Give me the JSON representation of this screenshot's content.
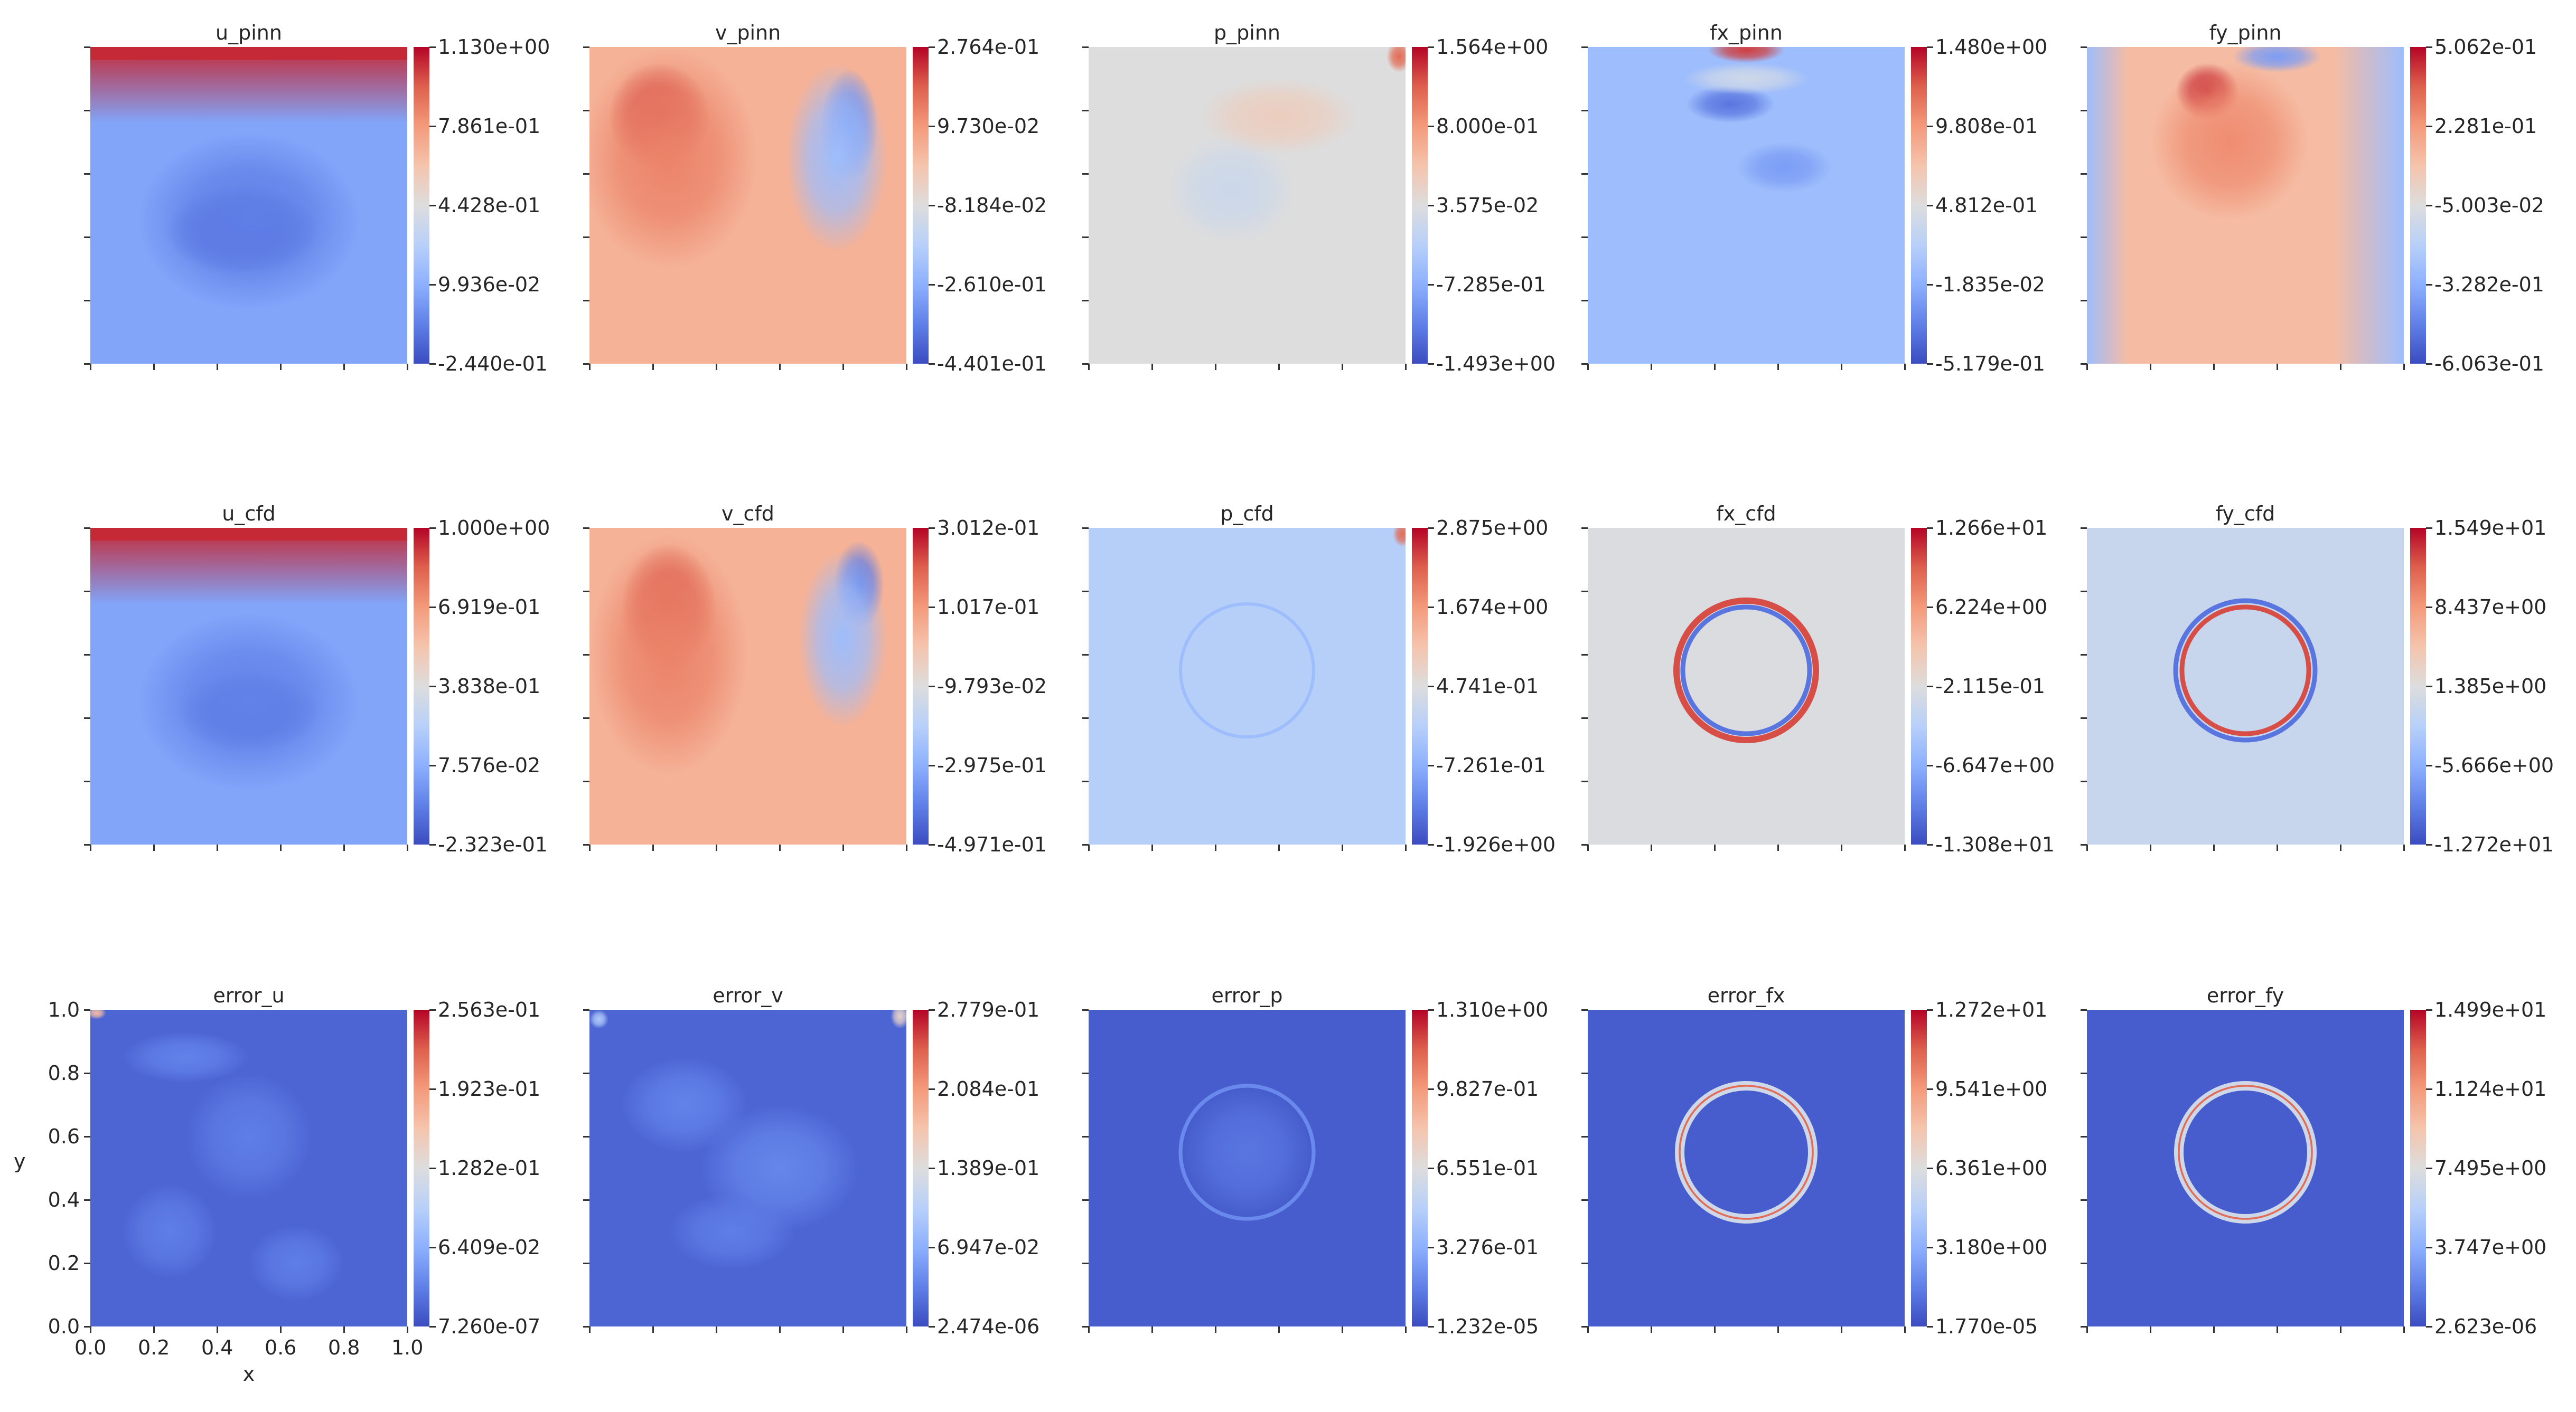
{
  "figure": {
    "background": "#ffffff"
  },
  "chart_data": [
    {
      "type": "heatmap",
      "title": "u_pinn",
      "cmap": "coolwarm",
      "colorbar_ticks": [
        "1.130e+00",
        "7.861e-01",
        "4.428e-01",
        "9.936e-02",
        "-2.440e-01"
      ],
      "background_level": 0.22,
      "features": [
        {
          "kind": "top-band",
          "level": 0.95,
          "width": 0.24,
          "thickness": 0.04
        },
        {
          "kind": "blob",
          "level": 0.06,
          "cx": 0.48,
          "cy": 0.42,
          "rx": 0.24,
          "ry": 0.14
        },
        {
          "kind": "blob",
          "level": 0.12,
          "cx": 0.5,
          "cy": 0.45,
          "rx": 0.35,
          "ry": 0.28
        }
      ]
    },
    {
      "type": "heatmap",
      "title": "v_pinn",
      "cmap": "coolwarm",
      "colorbar_ticks": [
        "2.764e-01",
        "9.730e-02",
        "-8.184e-02",
        "-2.610e-01",
        "-4.401e-01"
      ],
      "background_level": 0.68,
      "features": [
        {
          "kind": "blob",
          "level": 0.92,
          "cx": 0.22,
          "cy": 0.78,
          "rx": 0.16,
          "ry": 0.17
        },
        {
          "kind": "blob",
          "level": 0.8,
          "cx": 0.25,
          "cy": 0.65,
          "rx": 0.28,
          "ry": 0.35
        },
        {
          "kind": "blob",
          "level": 0.12,
          "cx": 0.82,
          "cy": 0.75,
          "rx": 0.09,
          "ry": 0.18
        },
        {
          "kind": "blob",
          "level": 0.3,
          "cx": 0.78,
          "cy": 0.65,
          "rx": 0.16,
          "ry": 0.3
        }
      ]
    },
    {
      "type": "heatmap",
      "title": "p_pinn",
      "cmap": "coolwarm",
      "colorbar_ticks": [
        "1.564e+00",
        "8.000e-01",
        "3.575e-02",
        "-7.285e-01",
        "-1.493e+00"
      ],
      "background_level": 0.5,
      "features": [
        {
          "kind": "blob",
          "level": 0.44,
          "cx": 0.45,
          "cy": 0.55,
          "rx": 0.2,
          "ry": 0.17
        },
        {
          "kind": "blob",
          "level": 0.58,
          "cx": 0.6,
          "cy": 0.78,
          "rx": 0.25,
          "ry": 0.12
        },
        {
          "kind": "blob",
          "level": 0.85,
          "cx": 0.98,
          "cy": 0.97,
          "rx": 0.04,
          "ry": 0.05
        }
      ]
    },
    {
      "type": "heatmap",
      "title": "fx_pinn",
      "cmap": "coolwarm",
      "colorbar_ticks": [
        "1.480e+00",
        "9.808e-01",
        "4.812e-01",
        "-1.835e-02",
        "-5.179e-01"
      ],
      "background_level": 0.3,
      "features": [
        {
          "kind": "blob",
          "level": 0.92,
          "cx": 0.5,
          "cy": 0.99,
          "rx": 0.12,
          "ry": 0.04
        },
        {
          "kind": "blob",
          "level": 0.1,
          "cx": 0.45,
          "cy": 0.82,
          "rx": 0.14,
          "ry": 0.06
        },
        {
          "kind": "blob",
          "level": 0.45,
          "cx": 0.5,
          "cy": 0.9,
          "rx": 0.2,
          "ry": 0.05
        },
        {
          "kind": "blob",
          "level": 0.2,
          "cx": 0.62,
          "cy": 0.62,
          "rx": 0.15,
          "ry": 0.08
        }
      ]
    },
    {
      "type": "heatmap",
      "title": "fy_pinn",
      "cmap": "coolwarm",
      "colorbar_ticks": [
        "5.062e-01",
        "2.281e-01",
        "-5.003e-02",
        "-3.282e-01",
        "-6.063e-01"
      ],
      "background_level": 0.65,
      "features": [
        {
          "kind": "left-edge",
          "level": 0.3,
          "width": 0.13
        },
        {
          "kind": "right-edge",
          "level": 0.3,
          "width": 0.22
        },
        {
          "kind": "blob",
          "level": 0.95,
          "cx": 0.38,
          "cy": 0.86,
          "rx": 0.1,
          "ry": 0.09
        },
        {
          "kind": "blob",
          "level": 0.2,
          "cx": 0.6,
          "cy": 0.97,
          "rx": 0.14,
          "ry": 0.05
        },
        {
          "kind": "blob",
          "level": 0.78,
          "cx": 0.45,
          "cy": 0.7,
          "rx": 0.25,
          "ry": 0.25
        }
      ]
    },
    {
      "type": "heatmap",
      "title": "u_cfd",
      "cmap": "coolwarm",
      "colorbar_ticks": [
        "1.000e+00",
        "6.919e-01",
        "3.838e-01",
        "7.576e-02",
        "-2.323e-01"
      ],
      "background_level": 0.22,
      "features": [
        {
          "kind": "top-band",
          "level": 0.95,
          "width": 0.24,
          "thickness": 0.04
        },
        {
          "kind": "blob",
          "level": 0.06,
          "cx": 0.5,
          "cy": 0.42,
          "rx": 0.22,
          "ry": 0.13
        },
        {
          "kind": "blob",
          "level": 0.13,
          "cx": 0.5,
          "cy": 0.45,
          "rx": 0.35,
          "ry": 0.28
        }
      ]
    },
    {
      "type": "heatmap",
      "title": "v_cfd",
      "cmap": "coolwarm",
      "colorbar_ticks": [
        "3.012e-01",
        "1.017e-01",
        "-9.793e-02",
        "-2.975e-01",
        "-4.971e-01"
      ],
      "background_level": 0.68,
      "features": [
        {
          "kind": "blob",
          "level": 0.9,
          "cx": 0.25,
          "cy": 0.75,
          "rx": 0.15,
          "ry": 0.2
        },
        {
          "kind": "blob",
          "level": 0.8,
          "cx": 0.25,
          "cy": 0.6,
          "rx": 0.25,
          "ry": 0.38
        },
        {
          "kind": "blob",
          "level": 0.12,
          "cx": 0.85,
          "cy": 0.82,
          "rx": 0.08,
          "ry": 0.14
        },
        {
          "kind": "blob",
          "level": 0.3,
          "cx": 0.8,
          "cy": 0.65,
          "rx": 0.14,
          "ry": 0.28
        }
      ]
    },
    {
      "type": "heatmap",
      "title": "p_cfd",
      "cmap": "coolwarm",
      "colorbar_ticks": [
        "2.875e+00",
        "1.674e+00",
        "4.741e-01",
        "-7.261e-01",
        "-1.926e+00"
      ],
      "background_level": 0.37,
      "features": [
        {
          "kind": "ring",
          "level": 0.3,
          "cx": 0.5,
          "cy": 0.55,
          "r": 0.21,
          "stroke": 0.01
        },
        {
          "kind": "blob",
          "level": 0.85,
          "cx": 0.99,
          "cy": 0.98,
          "rx": 0.03,
          "ry": 0.04
        }
      ]
    },
    {
      "type": "heatmap",
      "title": "fx_cfd",
      "cmap": "coolwarm",
      "colorbar_ticks": [
        "1.266e+01",
        "6.224e+00",
        "-2.115e-01",
        "-6.647e+00",
        "-1.308e+01"
      ],
      "background_level": 0.49,
      "features": [
        {
          "kind": "ring",
          "level": 0.9,
          "cx": 0.5,
          "cy": 0.55,
          "r": 0.22,
          "stroke": 0.02
        },
        {
          "kind": "ring",
          "level": 0.1,
          "cx": 0.5,
          "cy": 0.55,
          "r": 0.2,
          "stroke": 0.015
        }
      ]
    },
    {
      "type": "heatmap",
      "title": "fy_cfd",
      "cmap": "coolwarm",
      "colorbar_ticks": [
        "1.549e+01",
        "8.437e+00",
        "1.385e+00",
        "-5.666e+00",
        "-1.272e+01"
      ],
      "background_level": 0.43,
      "features": [
        {
          "kind": "ring",
          "level": 0.1,
          "cx": 0.5,
          "cy": 0.55,
          "r": 0.22,
          "stroke": 0.015
        },
        {
          "kind": "ring",
          "level": 0.9,
          "cx": 0.5,
          "cy": 0.55,
          "r": 0.2,
          "stroke": 0.015
        }
      ]
    },
    {
      "type": "heatmap",
      "title": "error_u",
      "cmap": "coolwarm",
      "colorbar_ticks": [
        "2.563e-01",
        "1.923e-01",
        "1.282e-01",
        "6.409e-02",
        "7.260e-07"
      ],
      "background_level": 0.06,
      "features": [
        {
          "kind": "blob",
          "level": 0.13,
          "cx": 0.3,
          "cy": 0.85,
          "rx": 0.2,
          "ry": 0.08
        },
        {
          "kind": "blob",
          "level": 0.12,
          "cx": 0.5,
          "cy": 0.6,
          "rx": 0.2,
          "ry": 0.2
        },
        {
          "kind": "blob",
          "level": 0.12,
          "cx": 0.25,
          "cy": 0.3,
          "rx": 0.15,
          "ry": 0.15
        },
        {
          "kind": "blob",
          "level": 0.12,
          "cx": 0.65,
          "cy": 0.2,
          "rx": 0.15,
          "ry": 0.12
        },
        {
          "kind": "blob",
          "level": 0.65,
          "cx": 0.02,
          "cy": 0.99,
          "rx": 0.03,
          "ry": 0.02
        }
      ],
      "xlabel": "x",
      "ylabel": "y",
      "xticks": [
        "0.0",
        "0.2",
        "0.4",
        "0.6",
        "0.8",
        "1.0"
      ],
      "yticks": [
        "0.0",
        "0.2",
        "0.4",
        "0.6",
        "0.8",
        "1.0"
      ],
      "xlim": [
        0,
        1
      ],
      "ylim": [
        0,
        1
      ]
    },
    {
      "type": "heatmap",
      "title": "error_v",
      "cmap": "coolwarm",
      "colorbar_ticks": [
        "2.779e-01",
        "2.084e-01",
        "1.389e-01",
        "6.947e-02",
        "2.474e-06"
      ],
      "background_level": 0.06,
      "features": [
        {
          "kind": "blob",
          "level": 0.13,
          "cx": 0.3,
          "cy": 0.7,
          "rx": 0.2,
          "ry": 0.15
        },
        {
          "kind": "blob",
          "level": 0.14,
          "cx": 0.6,
          "cy": 0.5,
          "rx": 0.25,
          "ry": 0.2
        },
        {
          "kind": "blob",
          "level": 0.12,
          "cx": 0.45,
          "cy": 0.3,
          "rx": 0.2,
          "ry": 0.12
        },
        {
          "kind": "blob",
          "level": 0.55,
          "cx": 0.98,
          "cy": 0.98,
          "rx": 0.03,
          "ry": 0.04
        },
        {
          "kind": "blob",
          "level": 0.35,
          "cx": 0.03,
          "cy": 0.97,
          "rx": 0.03,
          "ry": 0.03
        }
      ]
    },
    {
      "type": "heatmap",
      "title": "error_p",
      "cmap": "coolwarm",
      "colorbar_ticks": [
        "1.310e+00",
        "9.827e-01",
        "6.551e-01",
        "3.276e-01",
        "1.232e-05"
      ],
      "background_level": 0.04,
      "features": [
        {
          "kind": "blob",
          "level": 0.1,
          "cx": 0.5,
          "cy": 0.55,
          "rx": 0.2,
          "ry": 0.2
        },
        {
          "kind": "ring",
          "level": 0.15,
          "cx": 0.5,
          "cy": 0.55,
          "r": 0.21,
          "stroke": 0.012
        }
      ]
    },
    {
      "type": "heatmap",
      "title": "error_fx",
      "cmap": "coolwarm",
      "colorbar_ticks": [
        "1.272e+01",
        "9.541e+00",
        "6.361e+00",
        "3.180e+00",
        "1.770e-05"
      ],
      "background_level": 0.04,
      "features": [
        {
          "kind": "ring",
          "level": 0.45,
          "cx": 0.5,
          "cy": 0.55,
          "r": 0.21,
          "stroke": 0.03
        },
        {
          "kind": "ring",
          "level": 0.85,
          "cx": 0.5,
          "cy": 0.55,
          "r": 0.21,
          "stroke": 0.006
        }
      ]
    },
    {
      "type": "heatmap",
      "title": "error_fy",
      "cmap": "coolwarm",
      "colorbar_ticks": [
        "1.499e+01",
        "1.124e+01",
        "7.495e+00",
        "3.747e+00",
        "2.623e-06"
      ],
      "background_level": 0.04,
      "features": [
        {
          "kind": "ring",
          "level": 0.45,
          "cx": 0.5,
          "cy": 0.55,
          "r": 0.21,
          "stroke": 0.03
        },
        {
          "kind": "ring",
          "level": 0.85,
          "cx": 0.5,
          "cy": 0.55,
          "r": 0.21,
          "stroke": 0.006
        }
      ]
    }
  ]
}
